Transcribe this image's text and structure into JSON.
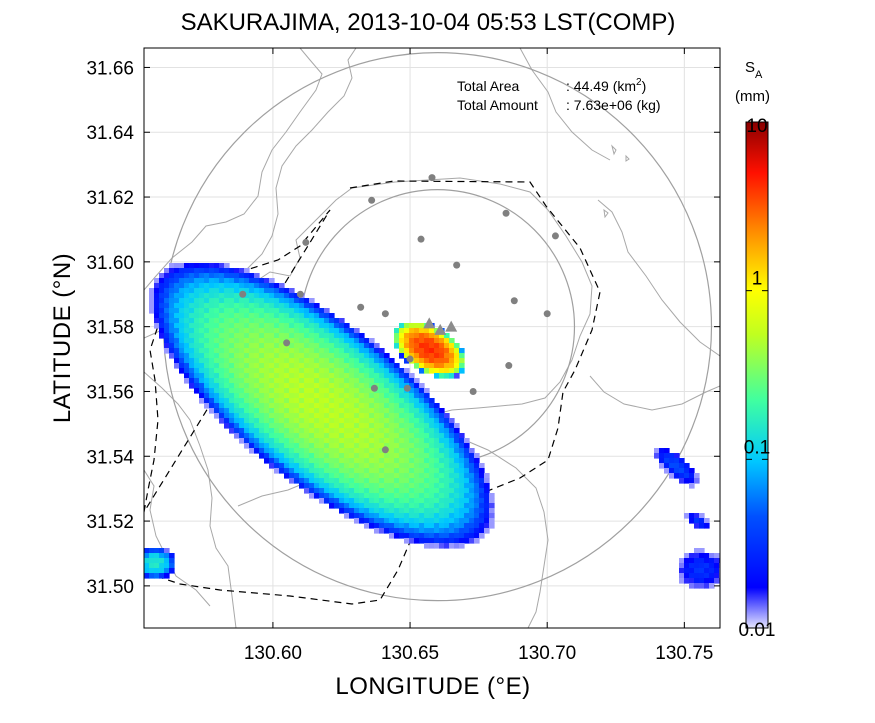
{
  "chart_data": {
    "type": "heatmap",
    "title": "SAKURAJIMA, 2013-10-04 05:53 LST(COMP)",
    "xlabel": "LONGITUDE (°E)",
    "ylabel": "LATITUDE (°N)",
    "xlim": [
      130.553,
      130.763
    ],
    "ylim": [
      31.487,
      31.666
    ],
    "xticks": [
      "130.60",
      "130.65",
      "130.70",
      "130.75"
    ],
    "yticks": [
      "31.50",
      "31.52",
      "31.54",
      "31.56",
      "31.58",
      "31.60",
      "31.62",
      "31.64",
      "31.66"
    ],
    "grid": true,
    "annotations": {
      "area_label": "Total Area",
      "area_value": ": 44.49 (km",
      "area_unit_sup": "2",
      "area_close": ")",
      "amount_label": "Total Amount",
      "amount_value": ": 7.63e+06 (kg)"
    },
    "colorbar": {
      "title_main": "S",
      "title_sub": "A",
      "unit": "(mm)",
      "scale": "log",
      "ticks": [
        "0.01",
        "0.1",
        "1",
        "10"
      ]
    },
    "summit_lon_lat": [
      130.66,
      31.58
    ],
    "stations": [
      [
        130.658,
        31.626
      ],
      [
        130.636,
        31.619
      ],
      [
        130.685,
        31.615
      ],
      [
        130.654,
        31.607
      ],
      [
        130.703,
        31.608
      ],
      [
        130.612,
        31.606
      ],
      [
        130.667,
        31.599
      ],
      [
        130.589,
        31.59
      ],
      [
        130.61,
        31.59
      ],
      [
        130.688,
        31.588
      ],
      [
        130.632,
        31.586
      ],
      [
        130.641,
        31.584
      ],
      [
        130.7,
        31.584
      ],
      [
        130.605,
        31.575
      ],
      [
        130.65,
        31.57
      ],
      [
        130.686,
        31.568
      ],
      [
        130.637,
        31.561
      ],
      [
        130.649,
        31.561
      ],
      [
        130.673,
        31.56
      ],
      [
        130.641,
        31.542
      ]
    ],
    "vents": [
      [
        130.657,
        31.581
      ],
      [
        130.661,
        31.579
      ],
      [
        130.665,
        31.58
      ]
    ],
    "plumes": [
      {
        "name": "main",
        "center": [
          130.618,
          31.556
        ],
        "rx_km": 7.5,
        "ry_km": 2.9,
        "angle": -38,
        "peak": 0.5
      },
      {
        "name": "vent",
        "center": [
          130.657,
          31.573
        ],
        "rx_km": 1.4,
        "ry_km": 0.8,
        "angle": -30,
        "peak": 4.0
      },
      {
        "name": "east-1",
        "center": [
          130.747,
          31.537
        ],
        "rx_km": 1.2,
        "ry_km": 0.45,
        "angle": -40,
        "peak": 0.04
      },
      {
        "name": "east-2",
        "center": [
          130.755,
          31.52
        ],
        "rx_km": 0.6,
        "ry_km": 0.3,
        "angle": -30,
        "peak": 0.03
      },
      {
        "name": "east-3",
        "center": [
          130.756,
          31.505
        ],
        "rx_km": 1.1,
        "ry_km": 0.9,
        "angle": 0,
        "peak": 0.03
      },
      {
        "name": "west",
        "center": [
          130.557,
          31.507
        ],
        "rx_km": 0.8,
        "ry_km": 0.6,
        "angle": 0,
        "peak": 0.15
      }
    ]
  }
}
